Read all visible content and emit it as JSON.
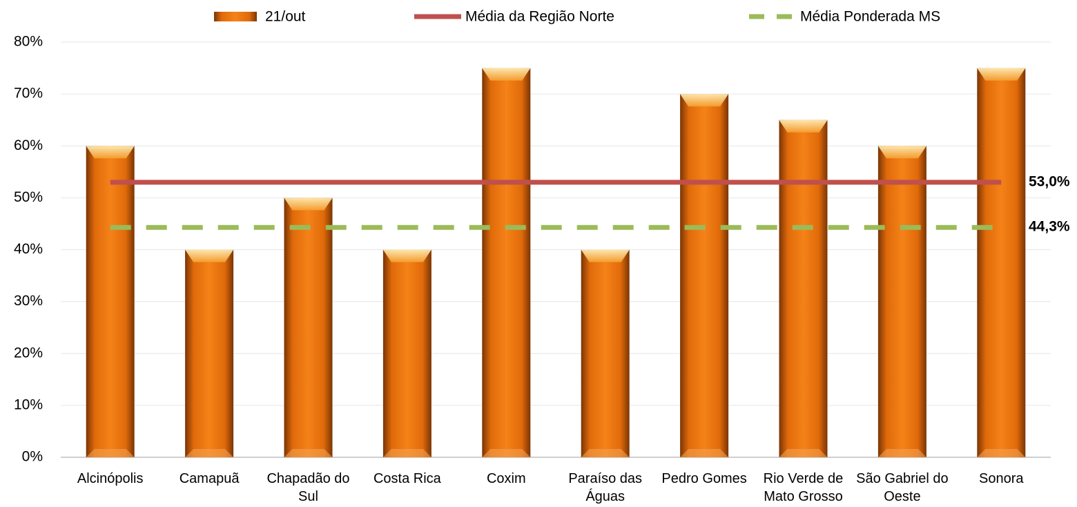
{
  "chart_data": {
    "type": "bar",
    "categories": [
      "Alcinópolis",
      "Camapuã",
      "Chapadão do Sul",
      "Costa Rica",
      "Coxim",
      "Paraíso das Águas",
      "Pedro Gomes",
      "Rio Verde de Mato Grosso",
      "São Gabriel do Oeste",
      "Sonora"
    ],
    "series": [
      {
        "name": "21/out",
        "type": "bar",
        "color": "#f07810",
        "values": [
          60,
          40,
          50,
          40,
          75,
          40,
          70,
          65,
          60,
          75
        ]
      },
      {
        "name": "Média da Região Norte",
        "type": "line",
        "color": "#c0504d",
        "values": [
          53.0,
          53.0,
          53.0,
          53.0,
          53.0,
          53.0,
          53.0,
          53.0,
          53.0,
          53.0
        ],
        "value_labels": [
          null,
          null,
          null,
          null,
          null,
          null,
          null,
          null,
          null,
          "53,0%"
        ]
      },
      {
        "name": "Média Ponderada MS",
        "type": "line",
        "dashed": true,
        "color": "#9bbb59",
        "values": [
          44.3,
          44.3,
          44.3,
          44.3,
          44.3,
          44.3,
          44.3,
          44.3,
          44.3,
          44.3
        ],
        "value_labels": [
          null,
          null,
          null,
          null,
          null,
          null,
          null,
          null,
          null,
          "44,3%"
        ]
      }
    ],
    "ylim": [
      0,
      80
    ],
    "yticks": [
      {
        "value": 0,
        "label": "0%"
      },
      {
        "value": 10,
        "label": "10%"
      },
      {
        "value": 20,
        "label": "20%"
      },
      {
        "value": 30,
        "label": "30%"
      },
      {
        "value": 40,
        "label": "40%"
      },
      {
        "value": 50,
        "label": "50%"
      },
      {
        "value": 60,
        "label": "60%"
      },
      {
        "value": 70,
        "label": "70%"
      },
      {
        "value": 80,
        "label": "80%"
      }
    ],
    "grid": true,
    "legend": "top"
  }
}
